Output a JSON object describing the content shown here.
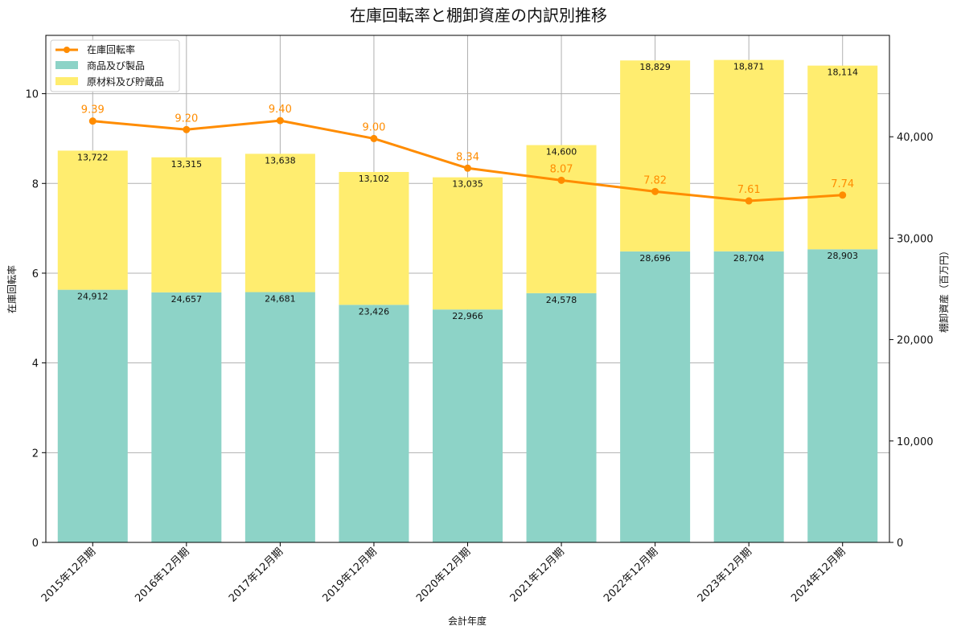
{
  "chart_data": {
    "type": "bar",
    "title": "在庫回転率と棚卸資産の内訳別推移",
    "xlabel": "会計年度",
    "ylabel_left": "在庫回転率",
    "ylabel_right": "棚卸資産（百万円）",
    "categories": [
      "2015年12月期",
      "2016年12月期",
      "2017年12月期",
      "2019年12月期",
      "2020年12月期",
      "2021年12月期",
      "2022年12月期",
      "2023年12月期",
      "2024年12月期"
    ],
    "left_ylim": [
      0,
      11.3
    ],
    "left_ticks": [
      "0",
      "2",
      "4",
      "6",
      "8",
      "10"
    ],
    "right_ylim": [
      0,
      50000
    ],
    "right_ticks": [
      "0",
      "10,000",
      "20,000",
      "30,000",
      "40,000"
    ],
    "grid": true,
    "legend_position": "top-left",
    "series": [
      {
        "name": "商品及び製品",
        "kind": "stacked-bar",
        "axis": "right",
        "color": "#8dd3c7",
        "values": [
          24912,
          24657,
          24681,
          23426,
          22966,
          24578,
          28696,
          28704,
          28903
        ],
        "labels": [
          "24,912",
          "24,657",
          "24,681",
          "23,426",
          "22,966",
          "24,578",
          "28,696",
          "28,704",
          "28,903"
        ]
      },
      {
        "name": "原材料及び貯蔵品",
        "kind": "stacked-bar",
        "axis": "right",
        "color": "#ffed6f",
        "values": [
          13722,
          13315,
          13638,
          13102,
          13035,
          14600,
          18829,
          18871,
          18114
        ],
        "labels": [
          "13,722",
          "13,315",
          "13,638",
          "13,102",
          "13,035",
          "14,600",
          "18,829",
          "18,871",
          "18,114"
        ]
      },
      {
        "name": "在庫回転率",
        "kind": "line",
        "axis": "left",
        "color": "#ff8c00",
        "values": [
          9.39,
          9.2,
          9.4,
          9.0,
          8.34,
          8.07,
          7.82,
          7.61,
          7.74
        ],
        "labels": [
          "9.39",
          "9.20",
          "9.40",
          "9.00",
          "8.34",
          "8.07",
          "7.82",
          "7.61",
          "7.74"
        ]
      }
    ]
  }
}
